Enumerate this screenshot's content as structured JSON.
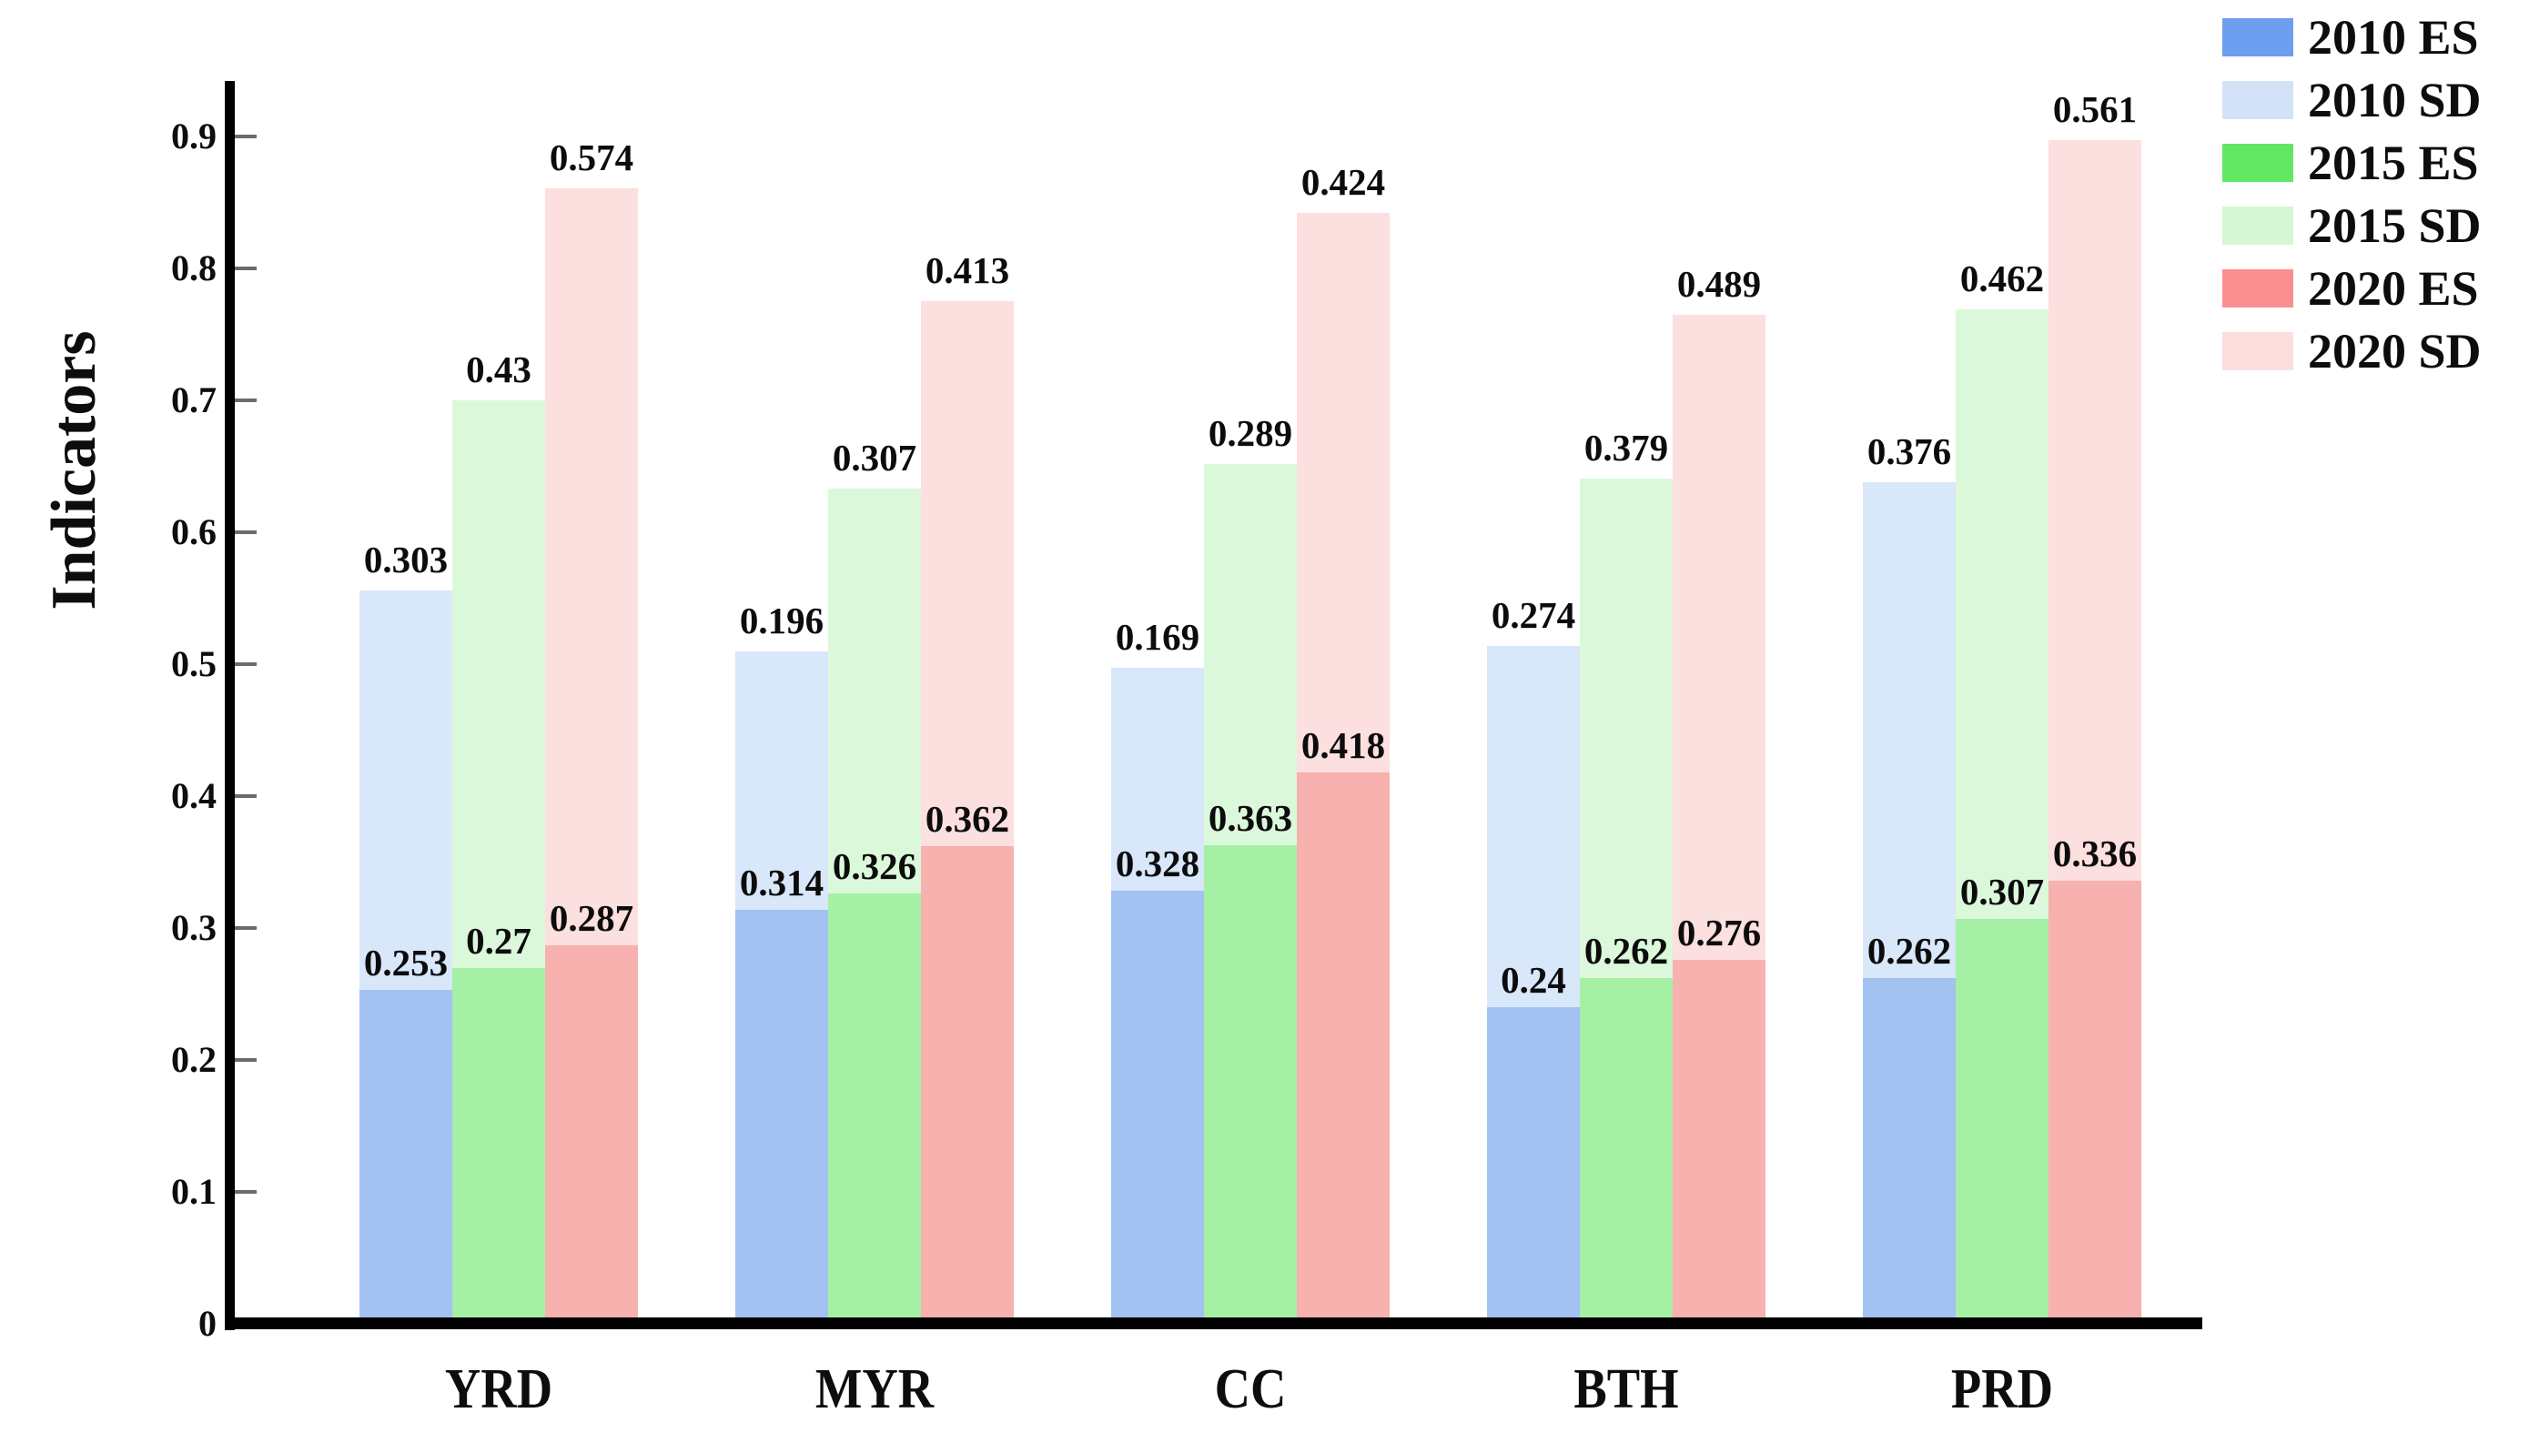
{
  "page": {
    "background": "#ffffff"
  },
  "chart_data": {
    "type": "bar",
    "variant": "grouped-stacked",
    "title": "",
    "ylabel": "Indicators",
    "xlabel": "",
    "categories": [
      "YRD",
      "MYR",
      "CC",
      "BTH",
      "PRD"
    ],
    "group_order": [
      "2010",
      "2015",
      "2020"
    ],
    "stack_order": [
      "ES bottom",
      "SD top"
    ],
    "series": [
      {
        "name": "2010 ES",
        "year": "2010",
        "role": "es",
        "values": [
          0.253,
          0.314,
          0.328,
          0.24,
          0.262
        ]
      },
      {
        "name": "2010 SD",
        "year": "2010",
        "role": "sd",
        "values": [
          0.303,
          0.196,
          0.169,
          0.274,
          0.376
        ]
      },
      {
        "name": "2015 ES",
        "year": "2015",
        "role": "es",
        "values": [
          0.27,
          0.326,
          0.363,
          0.262,
          0.307
        ]
      },
      {
        "name": "2015 SD",
        "year": "2015",
        "role": "sd",
        "values": [
          0.43,
          0.307,
          0.289,
          0.379,
          0.462
        ]
      },
      {
        "name": "2020 ES",
        "year": "2020",
        "role": "es",
        "values": [
          0.287,
          0.362,
          0.418,
          0.276,
          0.336
        ]
      },
      {
        "name": "2020 SD",
        "year": "2020",
        "role": "sd",
        "values": [
          0.574,
          0.413,
          0.424,
          0.489,
          0.561
        ]
      }
    ],
    "yticks": [
      0,
      0.1,
      0.2,
      0.3,
      0.4,
      0.5,
      0.6,
      0.7,
      0.8,
      0.9
    ],
    "ylim": [
      0,
      0.95
    ],
    "grid": false,
    "legend_position": "top-right"
  },
  "colors": {
    "axis": "#000000",
    "tick": "#6b6b6b",
    "text": "#0d0d0d",
    "series": [
      {
        "name": "2010 ES",
        "legend": "#6d9eef",
        "bar": "#a2c2f2"
      },
      {
        "name": "2010 SD",
        "legend": "#d4e2f7",
        "bar": "#d9e7fa"
      },
      {
        "name": "2015 ES",
        "legend": "#62e763",
        "bar": "#a5f0a4"
      },
      {
        "name": "2015 SD",
        "legend": "#d5f7d4",
        "bar": "#dcf8db"
      },
      {
        "name": "2020 ES",
        "legend": "#f98f8f",
        "bar": "#f7b1ae"
      },
      {
        "name": "2020 SD",
        "legend": "#fcdede",
        "bar": "#fcdfdf"
      }
    ]
  }
}
